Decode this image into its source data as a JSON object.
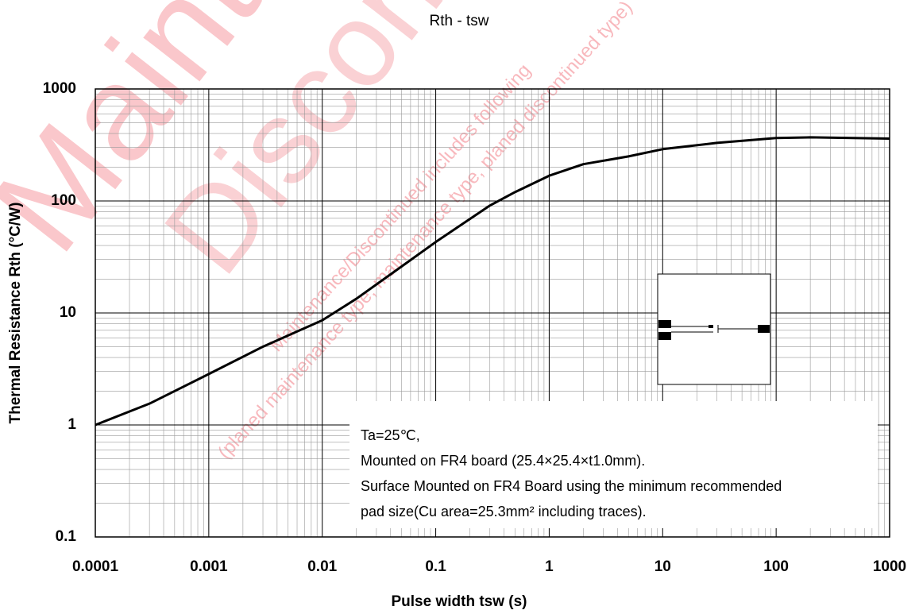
{
  "chart_data": {
    "type": "line",
    "title": "Rth - tsw",
    "x_label": "Pulse width tsw (s)",
    "y_label": "Thermal Resistance Rth (°C/W)",
    "x_log": true,
    "y_log": true,
    "grid": true,
    "minor_grid": true,
    "xlim": [
      0.0001,
      1000
    ],
    "ylim": [
      0.1,
      1000
    ],
    "xticks": [
      0.0001,
      0.001,
      0.01,
      0.1,
      1,
      10,
      100,
      1000
    ],
    "yticks": [
      0.1,
      1,
      10,
      100,
      1000
    ],
    "x": [
      0.0001,
      0.0003,
      0.001,
      0.003,
      0.01,
      0.02,
      0.05,
      0.1,
      0.3,
      0.5,
      1,
      2,
      5,
      10,
      30,
      100,
      200,
      1000
    ],
    "series": [
      {
        "color": "#000000",
        "values": [
          1,
          1.55,
          2.85,
          5,
          8.6,
          13.4,
          26,
          43,
          91,
          120,
          168,
          213,
          250,
          290,
          330,
          365,
          370,
          360
        ]
      }
    ],
    "annotations": [
      "Ta=25℃,",
      "Mounted on FR4 board  (25.4×25.4×t1.0mm).",
      "Surface Mounted on FR4 Board using the minimum recommended",
      "pad size(Cu area=25.3mm² including traces)."
    ],
    "watermark": [
      "Maintenance/",
      "Discontinued",
      "Maintenance/Discontinued includes following",
      "(planed maintenance type, maintenance type, planed discontinued type)"
    ]
  }
}
